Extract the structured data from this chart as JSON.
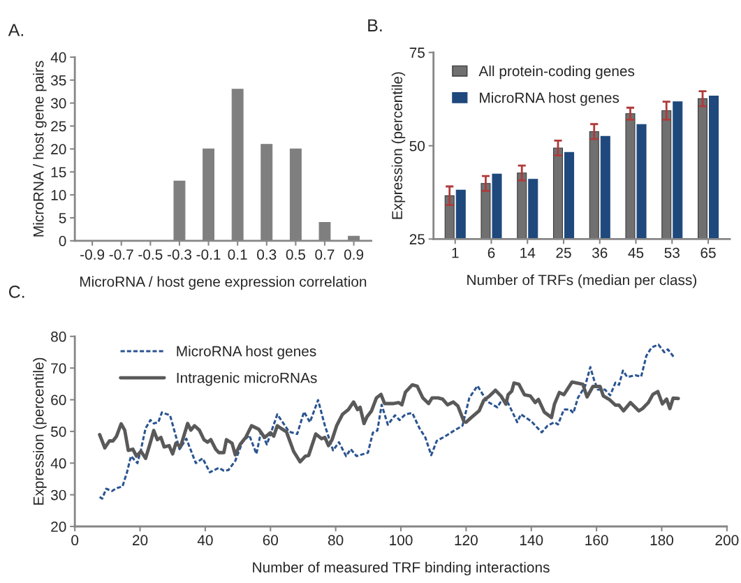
{
  "chart_data": [
    {
      "type": "bar",
      "title": "A.",
      "xlabel": "MicroRNA / host gene expression correlation",
      "ylabel": "MicroRNA / host gene pairs",
      "categories": [
        "-0.9",
        "-0.7",
        "-0.5",
        "-0.3",
        "-0.1",
        "0.1",
        "0.3",
        "0.5",
        "0.7",
        "0.9"
      ],
      "values": [
        0,
        0,
        0,
        13,
        20,
        33,
        21,
        20,
        4,
        1
      ],
      "color": "#7f7f7f",
      "ylim": [
        0,
        40
      ],
      "yticks": [
        0,
        5,
        10,
        15,
        20,
        25,
        30,
        35,
        40
      ],
      "grid": false,
      "legend": false
    },
    {
      "type": "bar",
      "title": "B.",
      "xlabel": "Number of TRFs (median per class)",
      "ylabel": "Expression (percentile)",
      "categories": [
        "1",
        "6",
        "14",
        "25",
        "36",
        "45",
        "53",
        "65"
      ],
      "series": [
        {
          "name": "All protein-coding genes",
          "color": "#707070",
          "values": [
            36.6,
            39.9,
            42.7,
            49.4,
            53.8,
            58.6,
            59.4,
            62.6
          ],
          "errors": [
            2.5,
            2,
            2,
            2,
            2,
            1.6,
            2.4,
            2
          ]
        },
        {
          "name": "MicroRNA host genes",
          "color": "#1f497d",
          "values": [
            38.1,
            42.4,
            41.0,
            48.2,
            52.5,
            55.7,
            61.8,
            63.3
          ]
        }
      ],
      "ylim": [
        25,
        75
      ],
      "yticks": [
        25,
        50,
        75
      ],
      "grid": false,
      "legend": "top left"
    },
    {
      "type": "line",
      "title": "C.",
      "xlabel": "Number of measured TRF binding interactions",
      "ylabel": "Expression (percentile)",
      "series": [
        {
          "name": "MicroRNA host genes",
          "color": "#2a5490",
          "line_style": "dashed",
          "x": [
            7.6,
            8.4,
            9.6,
            11.4,
            12.8,
            14.6,
            16.0,
            17.2,
            19.2,
            20.3,
            21.7,
            23.2,
            24.2,
            25.6,
            26.7,
            29.2,
            32.1,
            34.2,
            37.1,
            39.2,
            41.4,
            44.2,
            45.7,
            47.1,
            49.2,
            51.4,
            53.5,
            55.7,
            57.1,
            58.9,
            62.1,
            65.7,
            68.2,
            70.3,
            72.1,
            74.6,
            76.7,
            79.2,
            81.0,
            83.2,
            84.6,
            86.4,
            89.9,
            91.4,
            92.8,
            94.1,
            96.0,
            98.2,
            99.6,
            101.4,
            103.5,
            105.7,
            107.5,
            109.3,
            111.0,
            113.5,
            116.4,
            118.9,
            121.0,
            123.5,
            126.4,
            129.6,
            131.1,
            132.8,
            135.7,
            136.8,
            140.0,
            143.2,
            145.0,
            147.1,
            148.2,
            150.0,
            151.9,
            152.9,
            154.3,
            156.5,
            158.1,
            159.3,
            160.4,
            162.6,
            164.2,
            165.8,
            166.9,
            168.1,
            169.4,
            171.9,
            173.7,
            175.3,
            176.9,
            179.0,
            180.8,
            181.9,
            183.7
          ],
          "values": [
            29.3,
            28.8,
            31.9,
            31.2,
            32.1,
            32.6,
            37.1,
            42.2,
            40.0,
            44.4,
            51.0,
            53.6,
            52.5,
            52.9,
            56.0,
            55.1,
            44.4,
            47.7,
            40.0,
            41.5,
            37.1,
            38.5,
            37.6,
            37.8,
            40.7,
            46.6,
            48.8,
            42.9,
            49.9,
            45.9,
            55.4,
            49.9,
            49.2,
            56.2,
            52.9,
            59.9,
            51.8,
            44.0,
            46.6,
            42.2,
            44.4,
            42.2,
            43.3,
            49.6,
            50.3,
            58.4,
            52.1,
            55.1,
            53.6,
            55.4,
            55.8,
            51.0,
            48.1,
            42.5,
            47.0,
            48.4,
            50.3,
            51.8,
            60.6,
            64.4,
            59.5,
            57.6,
            60.2,
            59.1,
            52.9,
            55.4,
            53.2,
            49.7,
            51.8,
            52.9,
            52.2,
            56.9,
            56.9,
            55.8,
            60.6,
            64.3,
            70.3,
            66.1,
            63.2,
            63.2,
            61.4,
            65.4,
            64.7,
            69.2,
            67.2,
            67.7,
            67.3,
            73.9,
            76.5,
            77.4,
            75.0,
            75.9,
            73.5
          ]
        },
        {
          "name": "Intragenic microRNAs",
          "color": "#595959",
          "line_style": "solid",
          "x": [
            7.6,
            9.2,
            10.6,
            11.7,
            12.8,
            14.2,
            15.3,
            16.4,
            17.8,
            18.9,
            20.3,
            21.7,
            23.2,
            24.2,
            25.3,
            26.4,
            27.4,
            28.9,
            30.0,
            31.0,
            32.4,
            34.6,
            35.6,
            36.7,
            38.2,
            39.6,
            40.7,
            41.7,
            43.2,
            44.2,
            45.7,
            46.5,
            48.2,
            49.2,
            50.7,
            52.4,
            54.2,
            56.4,
            58.2,
            60.0,
            61.0,
            62.1,
            63.2,
            64.9,
            67.1,
            69.1,
            70.7,
            71.7,
            73.9,
            75.7,
            76.7,
            77.8,
            78.9,
            80.3,
            82.1,
            83.9,
            85.5,
            86.7,
            87.5,
            88.7,
            89.6,
            91.0,
            92.5,
            93.9,
            95.0,
            97.8,
            99.3,
            100.3,
            101.4,
            103.5,
            105.0,
            106.7,
            108.5,
            109.6,
            111.4,
            112.8,
            114.3,
            116.1,
            117.5,
            119.3,
            120.0,
            121.5,
            124.0,
            125.4,
            127.2,
            129.0,
            130.7,
            132.2,
            132.9,
            134.0,
            134.7,
            136.2,
            137.9,
            139.7,
            141.2,
            142.2,
            144.0,
            146.2,
            147.1,
            148.6,
            150.0,
            152.5,
            155.8,
            157.1,
            158.9,
            161.1,
            162.1,
            163.9,
            165.8,
            166.9,
            168.3,
            170.4,
            173.0,
            174.1,
            175.9,
            177.3,
            178.8,
            180.2,
            181.5,
            182.5,
            183.5,
            185.1
          ],
          "values": [
            49.0,
            44.8,
            47.0,
            47.0,
            48.5,
            52.4,
            50.4,
            44.0,
            44.4,
            42.2,
            43.7,
            41.5,
            46.6,
            50.3,
            47.4,
            48.1,
            45.1,
            45.5,
            42.9,
            46.3,
            45.1,
            52.5,
            50.4,
            51.8,
            50.4,
            47.4,
            46.6,
            47.4,
            44.4,
            43.3,
            43.3,
            47.4,
            46.3,
            42.6,
            45.9,
            48.1,
            51.8,
            50.7,
            48.1,
            49.6,
            48.5,
            51.8,
            51.0,
            49.9,
            43.7,
            40.4,
            42.2,
            42.4,
            49.2,
            47.7,
            48.1,
            45.5,
            47.4,
            51.8,
            55.4,
            56.9,
            59.3,
            56.9,
            57.6,
            52.5,
            54.6,
            56.5,
            60.6,
            61.7,
            58.8,
            58.8,
            59.1,
            58.4,
            62.4,
            64.7,
            64.3,
            60.6,
            58.8,
            60.6,
            60.6,
            60.2,
            58.4,
            59.3,
            58.0,
            53.2,
            52.9,
            54.3,
            56.5,
            59.8,
            61.2,
            63.0,
            61.2,
            58.6,
            61.6,
            62.7,
            65.3,
            64.9,
            61.6,
            61.2,
            59.1,
            60.1,
            56.1,
            54.4,
            58.6,
            62.3,
            61.6,
            65.6,
            64.9,
            60.9,
            64.2,
            64.2,
            61.2,
            60.1,
            58.3,
            58.3,
            56.5,
            59.1,
            56.5,
            57.2,
            59.1,
            61.7,
            62.6,
            58.7,
            60.2,
            57.2,
            60.5,
            60.4
          ]
        }
      ],
      "xlim": [
        0,
        200
      ],
      "xticks": [
        0,
        20,
        40,
        60,
        80,
        100,
        120,
        140,
        160,
        180,
        200
      ],
      "ylim": [
        20,
        80
      ],
      "yticks": [
        20,
        30,
        40,
        50,
        60,
        70,
        80
      ],
      "grid": false,
      "legend": "top left",
      "marker": "none"
    }
  ]
}
